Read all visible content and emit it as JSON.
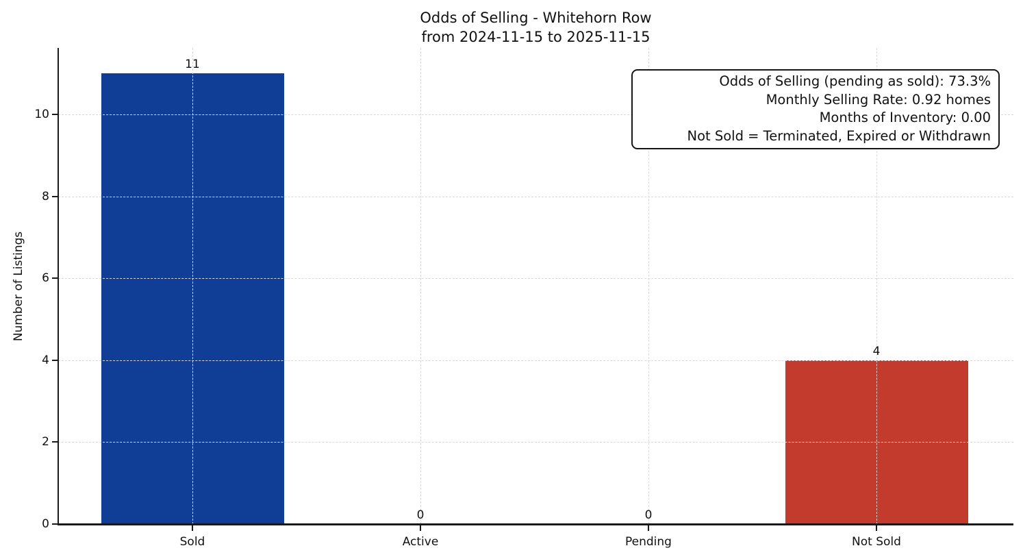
{
  "chart_data": {
    "type": "bar",
    "title": "Odds of Selling - Whitehorn Row",
    "subtitle": "from 2024-11-15 to 2025-11-15",
    "ylabel": "Number of Listings",
    "xlabel": "",
    "categories": [
      "Sold",
      "Active",
      "Pending",
      "Not Sold"
    ],
    "values": [
      11,
      0,
      0,
      4
    ],
    "bar_value_labels": [
      "11",
      "0",
      "0",
      "4"
    ],
    "bar_colors": [
      "#103e96",
      null,
      null,
      "#c23b2c"
    ],
    "yticks": [
      0,
      2,
      4,
      6,
      8,
      10
    ],
    "ylim": [
      0,
      11.6
    ],
    "grid": "dashed",
    "grid_color": "#d8d8d8",
    "legend": "none",
    "annotation_box": {
      "position": "top-right",
      "lines": [
        "Odds of Selling (pending as sold): 73.3%",
        "Monthly Selling Rate: 0.92 homes",
        "Months of Inventory: 0.00",
        "Not Sold = Terminated, Expired or Withdrawn"
      ]
    }
  }
}
